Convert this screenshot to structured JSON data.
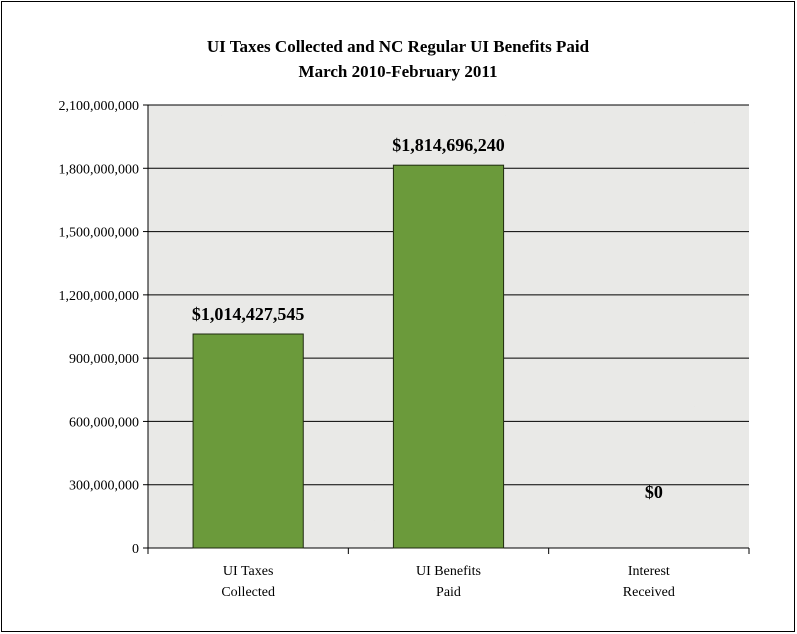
{
  "chart_data": {
    "type": "bar",
    "title": "UI Taxes Collected and NC Regular UI Benefits Paid",
    "subtitle": "March 2010-February 2011",
    "categories": [
      [
        "UI Taxes",
        "Collected"
      ],
      [
        "UI Benefits",
        "Paid"
      ],
      [
        "Interest",
        "Received"
      ]
    ],
    "values": [
      1014427545,
      1814696240,
      0
    ],
    "data_labels": [
      "$1,014,427,545",
      "$1,814,696,240",
      "$0"
    ],
    "ylim": [
      0,
      2100000000
    ],
    "yticks": [
      0,
      300000000,
      600000000,
      900000000,
      1200000000,
      1500000000,
      1800000000,
      2100000000
    ],
    "ytick_labels": [
      "0",
      "300,000,000",
      "600,000,000",
      "900,000,000",
      "1,200,000,000",
      "1,500,000,000",
      "1,800,000,000",
      "2,100,000,000"
    ],
    "grid": true,
    "legend": "none",
    "colors": {
      "bar": "#6b9a3b",
      "bar_edge": "#1f2a10",
      "plot_bg": "#e9e9e7",
      "grid": "#000000"
    }
  }
}
